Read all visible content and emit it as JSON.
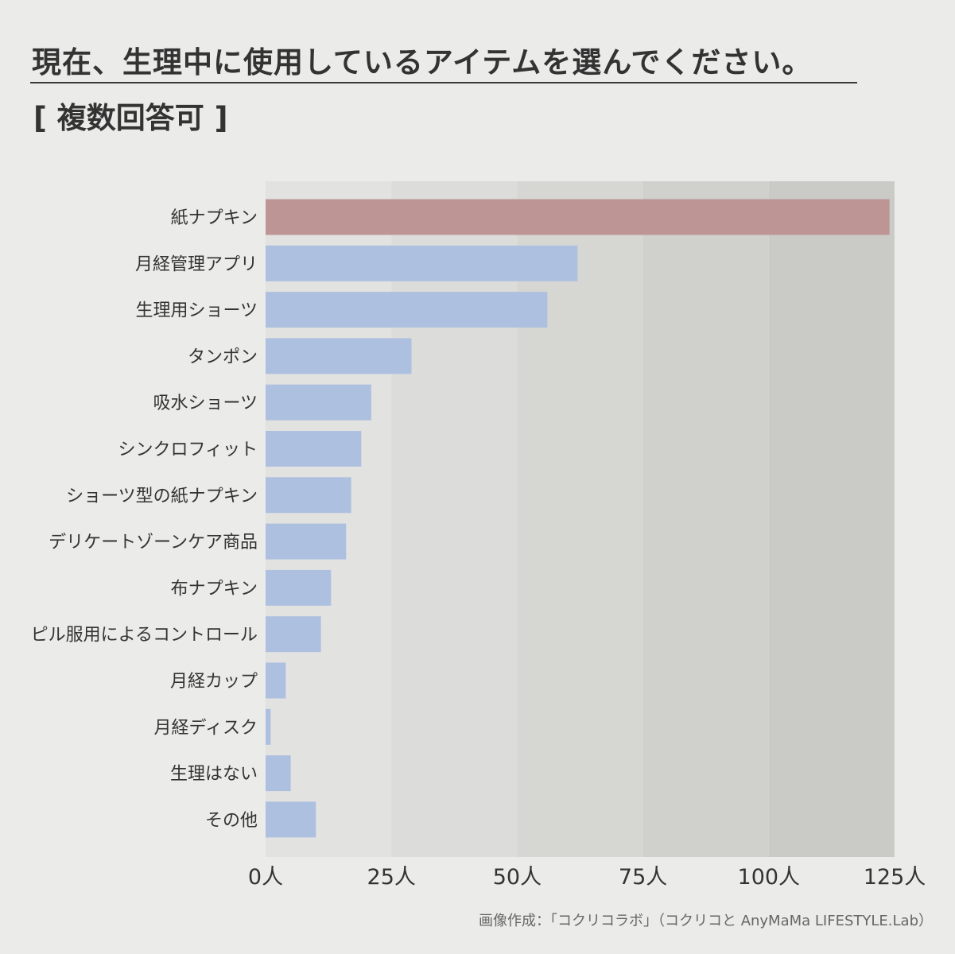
{
  "header": {
    "title": "現在、生理中に使用しているアイテムを選んでください。",
    "subtitle": "[ 複数回答可 ]"
  },
  "footer": {
    "credit": "画像作成：「コクリコラボ」（コクリコと AnyMaMa LIFESTYLE.Lab）"
  },
  "chart_data": {
    "type": "bar",
    "orientation": "horizontal",
    "categories": [
      "紙ナプキン",
      "月経管理アプリ",
      "生理用ショーツ",
      "タンポン",
      "吸水ショーツ",
      "シンクロフィット",
      "ショーツ型の紙ナプキン",
      "デリケートゾーンケア商品",
      "布ナプキン",
      "ピル服用によるコントロール",
      "月経カップ",
      "月経ディスク",
      "生理はない",
      "その他"
    ],
    "values": [
      124,
      62,
      56,
      29,
      21,
      19,
      17,
      16,
      13,
      11,
      4,
      1,
      5,
      10
    ],
    "xlim": [
      0,
      125
    ],
    "xticks": [
      0,
      25,
      50,
      75,
      100,
      125
    ],
    "xtick_labels": [
      "0人",
      "25人",
      "50人",
      "75人",
      "100人",
      "125人"
    ],
    "highlight_index": 0,
    "colors": {
      "highlight": "#be9595",
      "bar": "#aec0e0",
      "bands": [
        "#e2e2e0",
        "#dcdcda",
        "#d6d6d3",
        "#d0d0cd",
        "#cacac6"
      ],
      "text": "#333333"
    },
    "grid": false,
    "legend": "none"
  }
}
